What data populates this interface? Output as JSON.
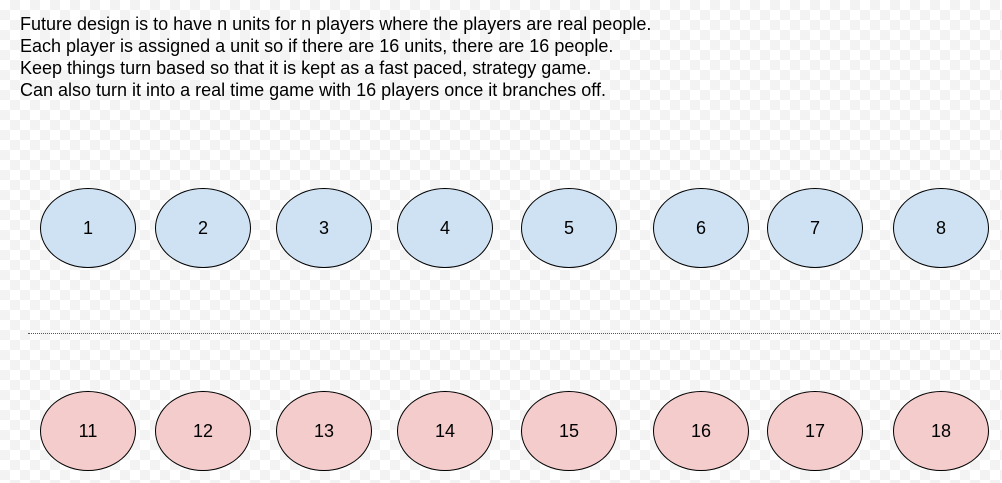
{
  "notes": [
    "Future design is to have n units for n players where the players are real people.",
    "Each player is assigned a unit so if there are 16 units, there are 16 people.",
    "Keep things turn based so that it is kept as a fast paced, strategy game.",
    "Can also turn it into a real time game with 16 players once it branches off."
  ],
  "top_units": [
    "1",
    "2",
    "3",
    "4",
    "5",
    "6",
    "7",
    "8"
  ],
  "bottom_units": [
    "11",
    "12",
    "13",
    "14",
    "15",
    "16",
    "17",
    "18"
  ],
  "colors": {
    "top_unit_fill": "#cfe2f3",
    "bottom_unit_fill": "#f4cccc"
  }
}
